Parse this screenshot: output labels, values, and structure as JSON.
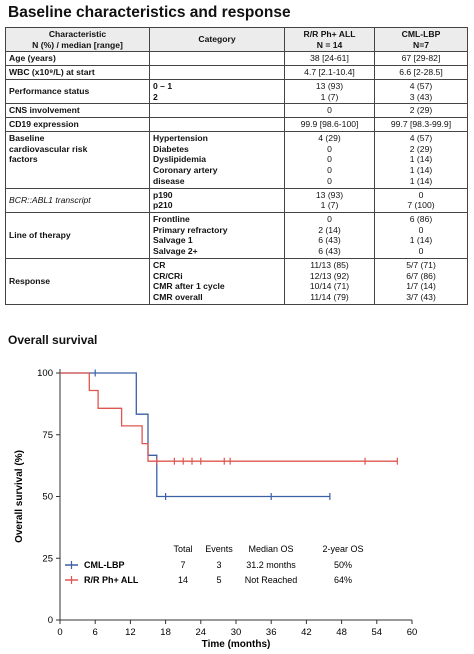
{
  "title": "Baseline characteristics and response",
  "table": {
    "headers": {
      "characteristic": [
        "Characteristic",
        "N (%) / median [range]"
      ],
      "category": [
        "Category"
      ],
      "rr": [
        "R/R Ph+ ALL",
        "N = 14"
      ],
      "cml": [
        "CML-LBP",
        "N=7"
      ]
    },
    "rows": [
      {
        "label": [
          "Age (years)"
        ],
        "cats": [],
        "rr": [
          "38 [24-61]"
        ],
        "cml": [
          "67 [29-82]"
        ]
      },
      {
        "label": [
          "WBC (x10⁹/L) at start"
        ],
        "cats": [],
        "rr": [
          "4.7 [2.1-10.4]"
        ],
        "cml": [
          "6.6 [2-28.5]"
        ]
      },
      {
        "label": [
          "Performance status"
        ],
        "cats": [
          "0 – 1",
          "2"
        ],
        "rr": [
          "13 (93)",
          "1 (7)"
        ],
        "cml": [
          "4 (57)",
          "3 (43)"
        ]
      },
      {
        "label": [
          "CNS involvement"
        ],
        "cats": [],
        "rr": [
          "0"
        ],
        "cml": [
          "2 (29)"
        ]
      },
      {
        "label": [
          "CD19 expression"
        ],
        "cats": [],
        "rr": [
          "99.9 [98.6-100]"
        ],
        "cml": [
          "99.7 [98.3-99.9]"
        ]
      },
      {
        "label": [
          "Baseline",
          "cardiovascular risk",
          "factors"
        ],
        "cats": [
          "Hypertension",
          "Diabetes",
          "Dyslipidemia",
          "Coronary artery",
          "disease"
        ],
        "rr": [
          "4 (29)",
          "0",
          "0",
          "0",
          "0"
        ],
        "cml": [
          "4 (57)",
          "2 (29)",
          "1 (14)",
          "1 (14)",
          "1 (14)"
        ]
      },
      {
        "label": [
          "BCR::ABL1 transcript"
        ],
        "cats": [
          "p190",
          "p210"
        ],
        "rr": [
          "13 (93)",
          "1 (7)"
        ],
        "cml": [
          "0",
          "7 (100)"
        ]
      },
      {
        "label": [
          "Line of therapy"
        ],
        "cats": [
          "Frontline",
          "Primary refractory",
          "Salvage 1",
          "Salvage 2+"
        ],
        "rr": [
          "0",
          "2 (14)",
          "6 (43)",
          "6 (43)"
        ],
        "cml": [
          "6 (86)",
          "0",
          "1 (14)",
          "0"
        ]
      },
      {
        "label": [
          "Response"
        ],
        "cats": [
          "CR",
          "CR/CRi",
          "CMR after 1 cycle",
          "CMR overall"
        ],
        "rr": [
          "11/13 (85)",
          "12/13 (92)",
          "10/14 (71)",
          "11/14 (79)"
        ],
        "cml": [
          "5/7 (71)",
          "6/7 (86)",
          "1/7 (14)",
          "3/7 (43)"
        ]
      }
    ]
  },
  "survival": {
    "title": "Overall survival",
    "chart_data": {
      "type": "line",
      "xlabel": "Time (months)",
      "ylabel": "Overall survival (%)",
      "xlim": [
        0,
        60
      ],
      "ylim": [
        0,
        100
      ],
      "xticks": [
        "0",
        "6",
        "12",
        "18",
        "24",
        "30",
        "36",
        "42",
        "48",
        "54",
        "60"
      ],
      "yticks": [
        "0",
        "25",
        "50",
        "75",
        "100"
      ],
      "series": [
        {
          "name": "CML-LBP",
          "color": "#3b5fa6",
          "steps": [
            [
              0,
              100
            ],
            [
              13,
              100
            ],
            [
              13,
              83.3
            ],
            [
              15,
              83.3
            ],
            [
              15,
              66.7
            ],
            [
              16.5,
              66.7
            ],
            [
              16.5,
              50
            ],
            [
              46,
              50
            ]
          ],
          "censor": [
            [
              6,
              100
            ],
            [
              18,
              50
            ],
            [
              36,
              50
            ],
            [
              46,
              50
            ]
          ]
        },
        {
          "name": "R/R Ph+ ALL",
          "color": "#e0554f",
          "steps": [
            [
              0,
              100
            ],
            [
              5,
              100
            ],
            [
              5,
              92.9
            ],
            [
              6.5,
              92.9
            ],
            [
              6.5,
              85.7
            ],
            [
              10.5,
              85.7
            ],
            [
              10.5,
              78.6
            ],
            [
              14,
              78.6
            ],
            [
              14,
              71.4
            ],
            [
              15,
              71.4
            ],
            [
              15,
              64.3
            ],
            [
              57.5,
              64.3
            ]
          ],
          "censor": [
            [
              16.5,
              64.3
            ],
            [
              19.5,
              64.3
            ],
            [
              21,
              64.3
            ],
            [
              22.5,
              64.3
            ],
            [
              24,
              64.3
            ],
            [
              28,
              64.3
            ],
            [
              29,
              64.3
            ],
            [
              52,
              64.3
            ],
            [
              57.5,
              64.3
            ]
          ]
        }
      ],
      "legend_table": {
        "headers": [
          "Total",
          "Events",
          "Median OS",
          "2-year OS"
        ],
        "rows": [
          {
            "name": "CML-LBP",
            "values": [
              "7",
              "3",
              "31.2 months",
              "50%"
            ]
          },
          {
            "name": "R/R Ph+ ALL",
            "values": [
              "14",
              "5",
              "Not Reached",
              "64%"
            ]
          }
        ]
      }
    }
  }
}
